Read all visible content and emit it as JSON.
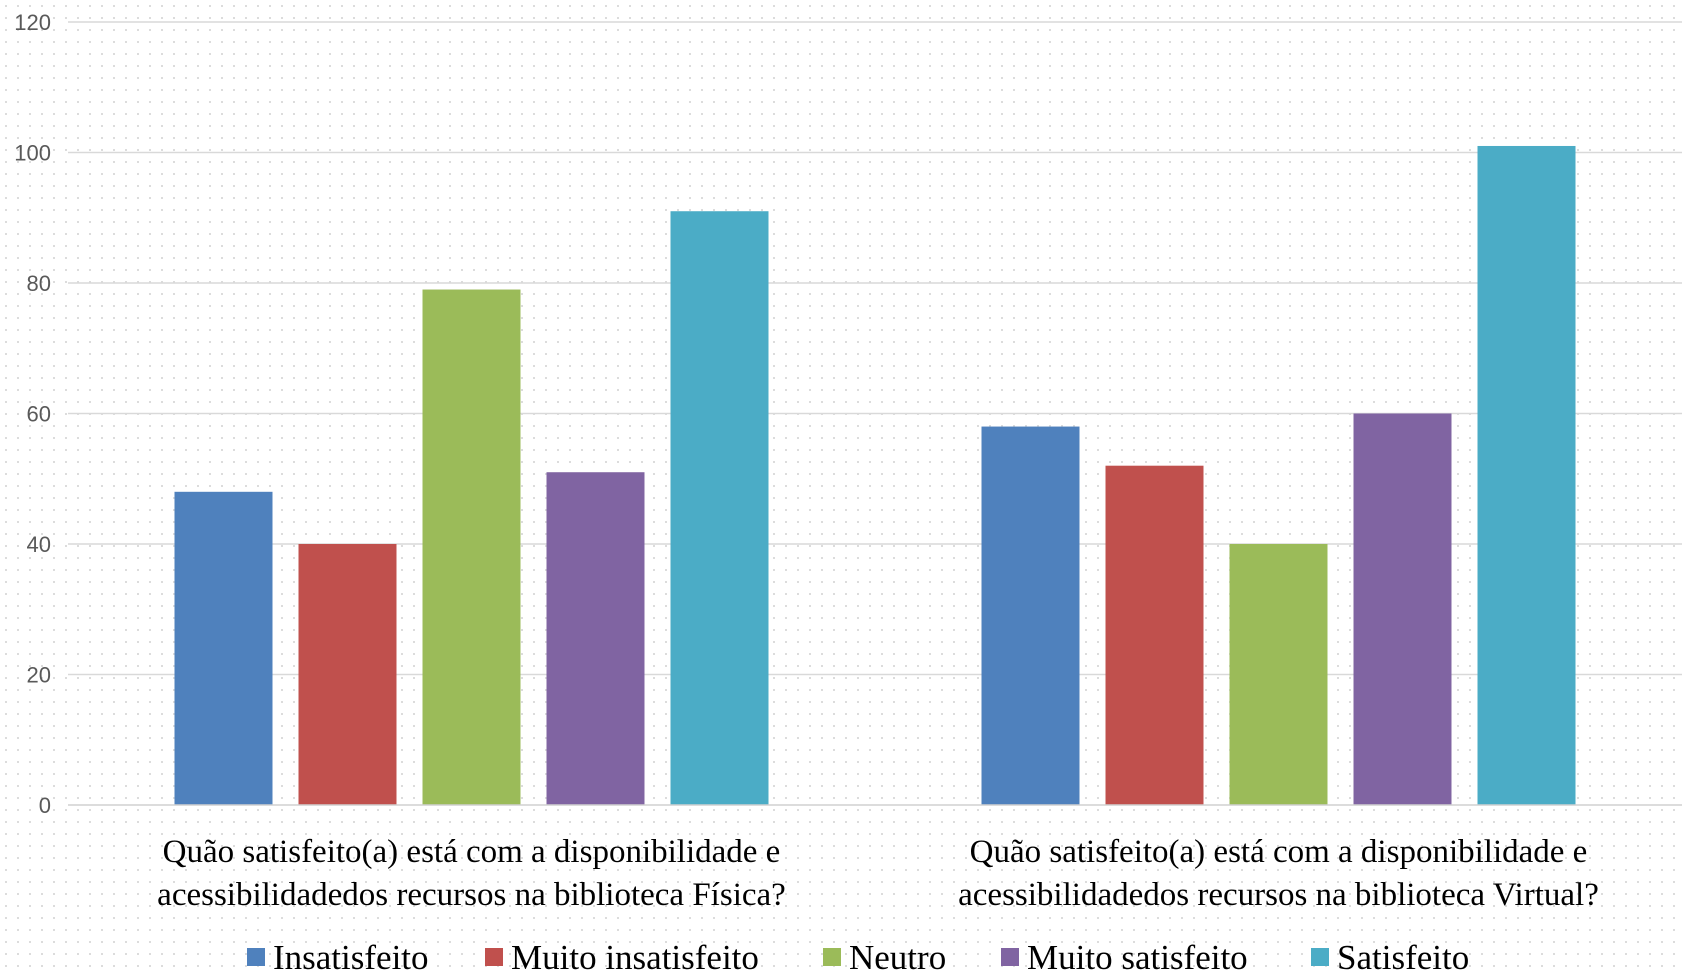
{
  "chart_data": {
    "type": "bar",
    "title": "",
    "xlabel": "",
    "ylabel": "",
    "ylim": [
      0,
      120
    ],
    "yticks": [
      0,
      20,
      40,
      60,
      80,
      100,
      120
    ],
    "grid": true,
    "legend_position": "bottom",
    "categories": [
      [
        "Quão satisfeito(a) está com a disponibilidade e",
        "acessibilidadedos recursos na biblioteca Física?"
      ],
      [
        "Quão satisfeito(a) está com a disponibilidade e",
        "acessibilidadedos recursos na biblioteca Virtual?"
      ]
    ],
    "series": [
      {
        "name": "Insatisfeito",
        "color": "#4F81BD",
        "values": [
          48,
          58
        ]
      },
      {
        "name": "Muito insatisfeito",
        "color": "#C0504D",
        "values": [
          40,
          52
        ]
      },
      {
        "name": "Neutro",
        "color": "#9BBB59",
        "values": [
          79,
          40
        ]
      },
      {
        "name": "Muito satisfeito",
        "color": "#8064A2",
        "values": [
          51,
          60
        ]
      },
      {
        "name": "Satisfeito",
        "color": "#4BACC6",
        "values": [
          91,
          101
        ]
      }
    ]
  }
}
